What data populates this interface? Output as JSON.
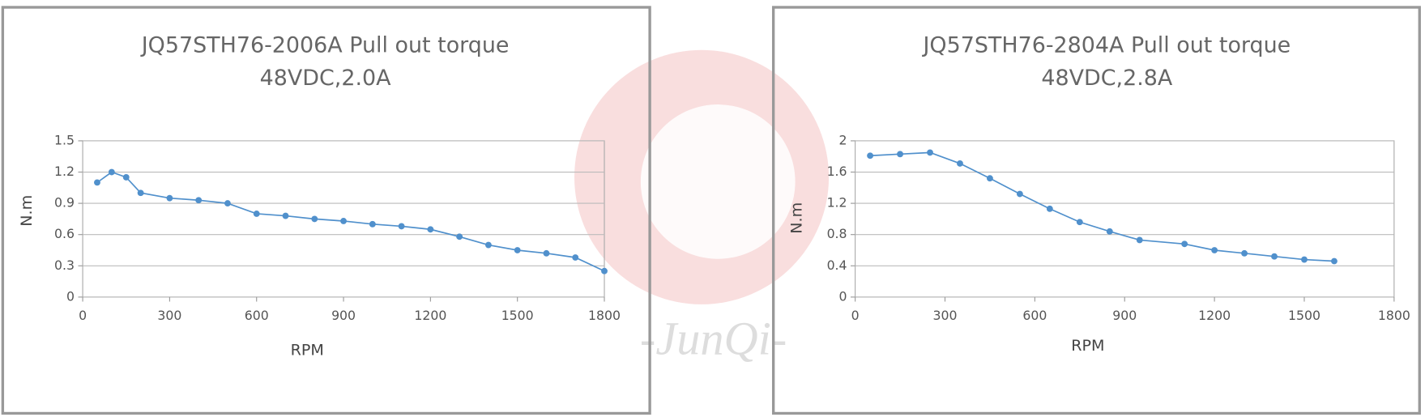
{
  "watermark": "-JunQi-",
  "chart_data": [
    {
      "type": "line",
      "title": "JQ57STH76-2006A Pull out torque",
      "subtitle": "48VDC,2.0A",
      "x_label": "RPM",
      "y_label": "N.m",
      "color": "#5090cc",
      "grid": true,
      "x": [
        50,
        100,
        150,
        200,
        300,
        400,
        500,
        600,
        700,
        800,
        900,
        1000,
        1100,
        1200,
        1300,
        1400,
        1500,
        1600,
        1700,
        1800
      ],
      "values": [
        1.1,
        1.2,
        1.15,
        1.0,
        0.95,
        0.93,
        0.9,
        0.8,
        0.78,
        0.75,
        0.73,
        0.7,
        0.68,
        0.65,
        0.58,
        0.5,
        0.45,
        0.42,
        0.38,
        0.25
      ],
      "xlim": [
        0,
        1800
      ],
      "xticks": [
        0,
        300,
        600,
        900,
        1200,
        1500,
        1800
      ],
      "ylim": [
        0,
        1.5
      ],
      "yticks": [
        0,
        0.3,
        0.6,
        0.9,
        1.2,
        1.5
      ]
    },
    {
      "type": "line",
      "title": "JQ57STH76-2804A Pull out torque",
      "subtitle": "48VDC,2.8A",
      "x_label": "RPM",
      "y_label": "N.m",
      "color": "#5090cc",
      "grid": true,
      "x": [
        50,
        150,
        250,
        350,
        450,
        550,
        650,
        750,
        850,
        950,
        1100,
        1200,
        1300,
        1400,
        1500,
        1600
      ],
      "values": [
        1.81,
        1.83,
        1.85,
        1.71,
        1.52,
        1.32,
        1.13,
        0.96,
        0.84,
        0.73,
        0.68,
        0.6,
        0.56,
        0.52,
        0.48,
        0.46
      ],
      "xlim": [
        0,
        1800
      ],
      "xticks": [
        0,
        300,
        600,
        900,
        1200,
        1500,
        1800
      ],
      "ylim": [
        0,
        2
      ],
      "yticks": [
        0,
        0.4,
        0.8,
        1.2,
        1.6,
        2
      ]
    }
  ]
}
